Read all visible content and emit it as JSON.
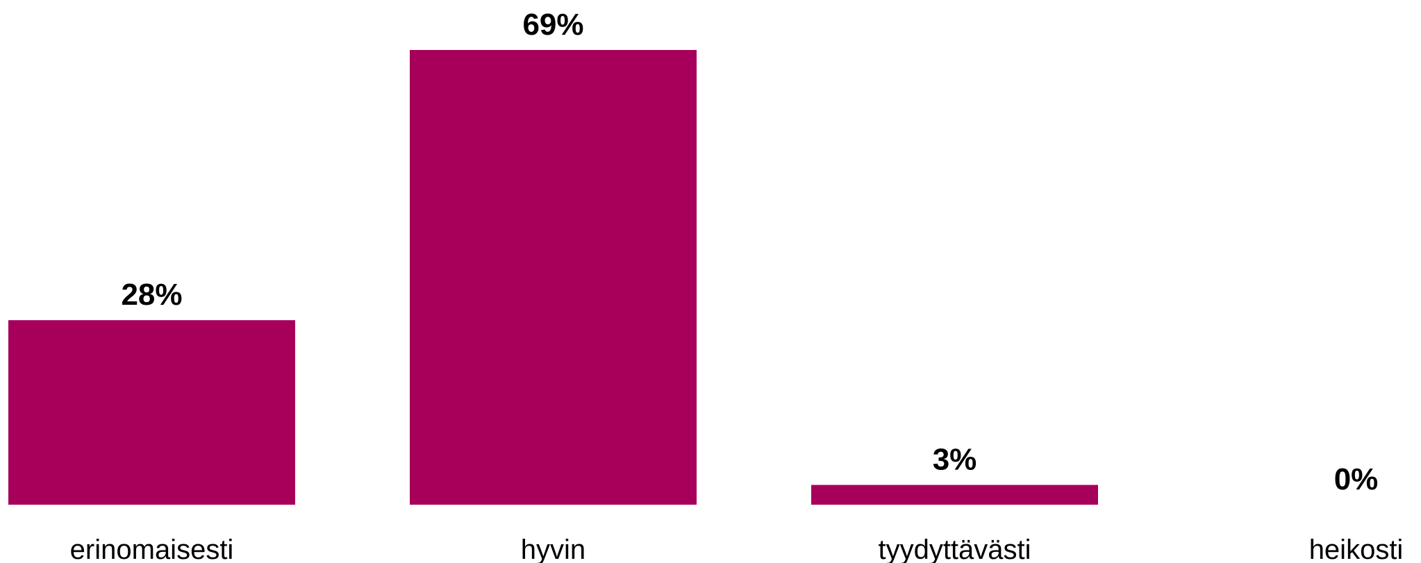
{
  "chart_data": {
    "type": "bar",
    "categories": [
      "erinomaisesti",
      "hyvin",
      "tyydyttävästi",
      "heikosti"
    ],
    "values": [
      28,
      69,
      3,
      0
    ],
    "value_labels": [
      "28%",
      "69%",
      "3%",
      "0%"
    ],
    "unit": "%",
    "bar_color": "#A6005B",
    "title": "",
    "xlabel": "",
    "ylabel": "",
    "ylim": [
      0,
      69
    ],
    "grid": false,
    "legend": "none"
  }
}
